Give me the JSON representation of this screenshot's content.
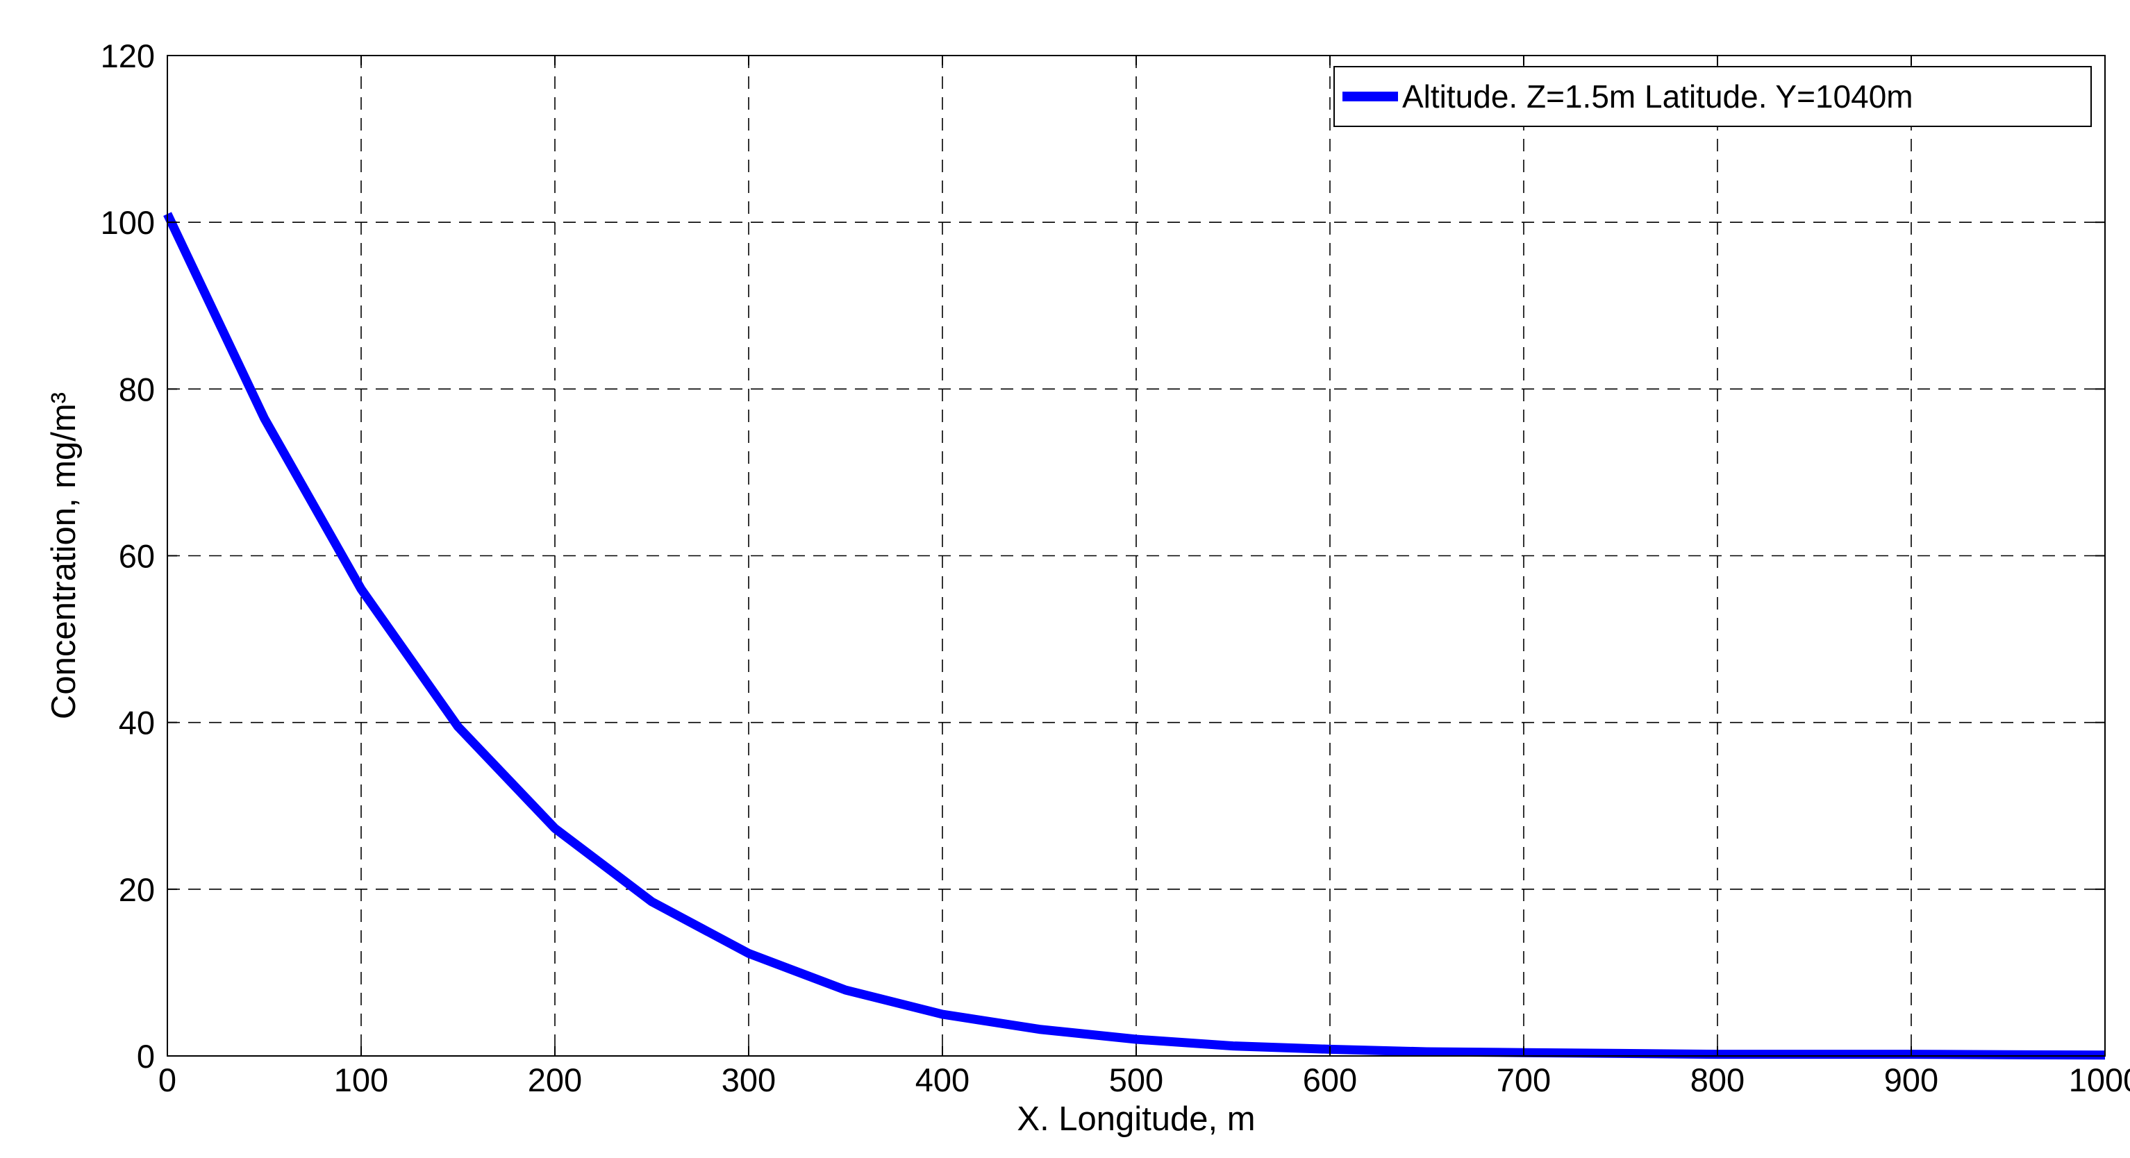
{
  "chart_data": {
    "type": "line",
    "title": "",
    "xlabel": "X. Longitude, m",
    "ylabel": "Concentration, mg/m³",
    "xlim": [
      0,
      1000
    ],
    "ylim": [
      0,
      120
    ],
    "xticks": [
      0,
      100,
      200,
      300,
      400,
      500,
      600,
      700,
      800,
      900,
      1000
    ],
    "yticks": [
      0,
      20,
      40,
      60,
      80,
      100,
      120
    ],
    "grid": true,
    "grid_style": "dashed",
    "legend_position": "top-right",
    "series": [
      {
        "name": "Altitude. Z=1.5m Latitude. Y=1040m",
        "color": "#0000ff",
        "x": [
          0,
          50,
          100,
          150,
          200,
          250,
          300,
          350,
          400,
          450,
          500,
          550,
          600,
          650,
          700,
          750,
          800,
          850,
          900,
          950,
          1000
        ],
        "y": [
          101,
          76.5,
          56,
          39.5,
          27.3,
          18.5,
          12.3,
          7.9,
          5.0,
          3.2,
          2.0,
          1.2,
          0.8,
          0.5,
          0.4,
          0.3,
          0.2,
          0.2,
          0.2,
          0.15,
          0.1
        ]
      }
    ]
  }
}
